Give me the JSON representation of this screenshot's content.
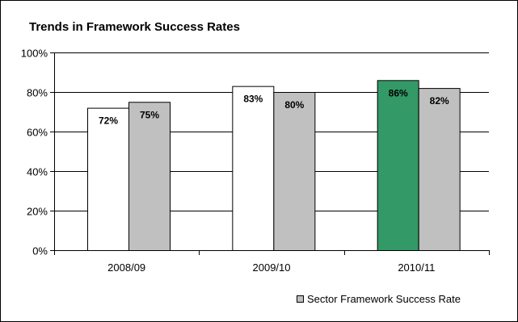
{
  "chart_data": {
    "type": "bar",
    "title": "Trends in Framework Success Rates",
    "xlabel": "",
    "ylabel": "",
    "categories": [
      "2008/09",
      "2009/10",
      "2010/11"
    ],
    "ylim": [
      0,
      100
    ],
    "y_ticks": [
      0,
      20,
      40,
      60,
      80,
      100
    ],
    "y_tick_suffix": "%",
    "grid": true,
    "legend_position": "bottom-right",
    "series": [
      {
        "values": [
          72,
          83,
          86
        ],
        "colors": [
          "#ffffff",
          "#ffffff",
          "#339966"
        ],
        "data_labels": [
          "72%",
          "83%",
          "86%"
        ]
      },
      {
        "name": "Sector Framework Success Rate",
        "values": [
          75,
          80,
          82
        ],
        "colors": [
          "#c0c0c0",
          "#c0c0c0",
          "#c0c0c0"
        ],
        "data_labels": [
          "75%",
          "80%",
          "82%"
        ]
      }
    ],
    "legend": [
      {
        "label": "Sector Framework Success Rate",
        "color": "#c0c0c0"
      }
    ]
  }
}
